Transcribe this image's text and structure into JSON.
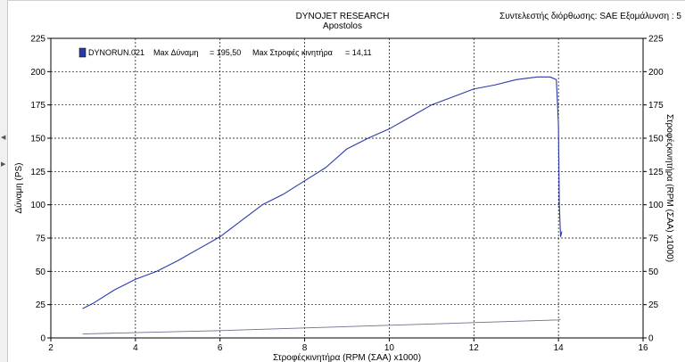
{
  "header": {
    "title": "DYNOJET RESEARCH",
    "subtitle": "Apostolos",
    "correction": "Συντελεστής διόρθωσης: SAE  Εξομάλυνση : 5"
  },
  "chart_data": {
    "type": "line",
    "xlabel": "Στροφέςκινητήρα  (RPM (ΣΑΑ) x1000)",
    "ylabel": "Δύναμη  (PS)",
    "y2label": "Στροφέςκινητήρα   (RPM (ΣΑΑ) x1000)",
    "xlim": [
      2,
      16
    ],
    "ylim": [
      0,
      225
    ],
    "y2lim": [
      0,
      225
    ],
    "x_ticks": [
      "2",
      "4",
      "6",
      "8",
      "10",
      "12",
      "14",
      "16"
    ],
    "y_ticks": [
      "0",
      "25",
      "50",
      "75",
      "100",
      "125",
      "150",
      "175",
      "200",
      "225"
    ],
    "y2_ticks": [
      "0",
      "25",
      "50",
      "75",
      "100",
      "125",
      "150",
      "175",
      "200",
      "225"
    ],
    "grid": true,
    "legend_position": "top-left",
    "legend": {
      "run": "DYNORUN.021",
      "max_power_label": "Max Δύναμη",
      "max_power_value": "= 195,50",
      "max_rpm_label": "Max Στροφές κινητήρα",
      "max_rpm_value": "= 14,11"
    },
    "series": [
      {
        "x": [
          2.75,
          3.0,
          3.5,
          4.0,
          4.5,
          5.0,
          5.5,
          6.0,
          6.5,
          7.0,
          7.5,
          8.0,
          8.5,
          9.0,
          9.5,
          10.0,
          10.5,
          11.0,
          11.5,
          12.0,
          12.5,
          13.0,
          13.5,
          13.8,
          13.95,
          14.0,
          14.02,
          14.05,
          14.08
        ],
        "values": [
          22,
          26,
          36,
          44,
          50,
          58,
          67,
          76,
          88,
          100,
          108,
          118,
          128,
          142,
          150,
          157,
          166,
          175,
          181,
          187,
          190,
          194,
          196,
          196,
          194,
          160,
          100,
          76,
          80
        ]
      },
      {
        "x": [
          2.75,
          4,
          6,
          8,
          10,
          12,
          14,
          14.05
        ],
        "values": [
          3,
          4,
          5.5,
          7.5,
          9.5,
          11.5,
          13.5,
          14
        ]
      }
    ]
  }
}
